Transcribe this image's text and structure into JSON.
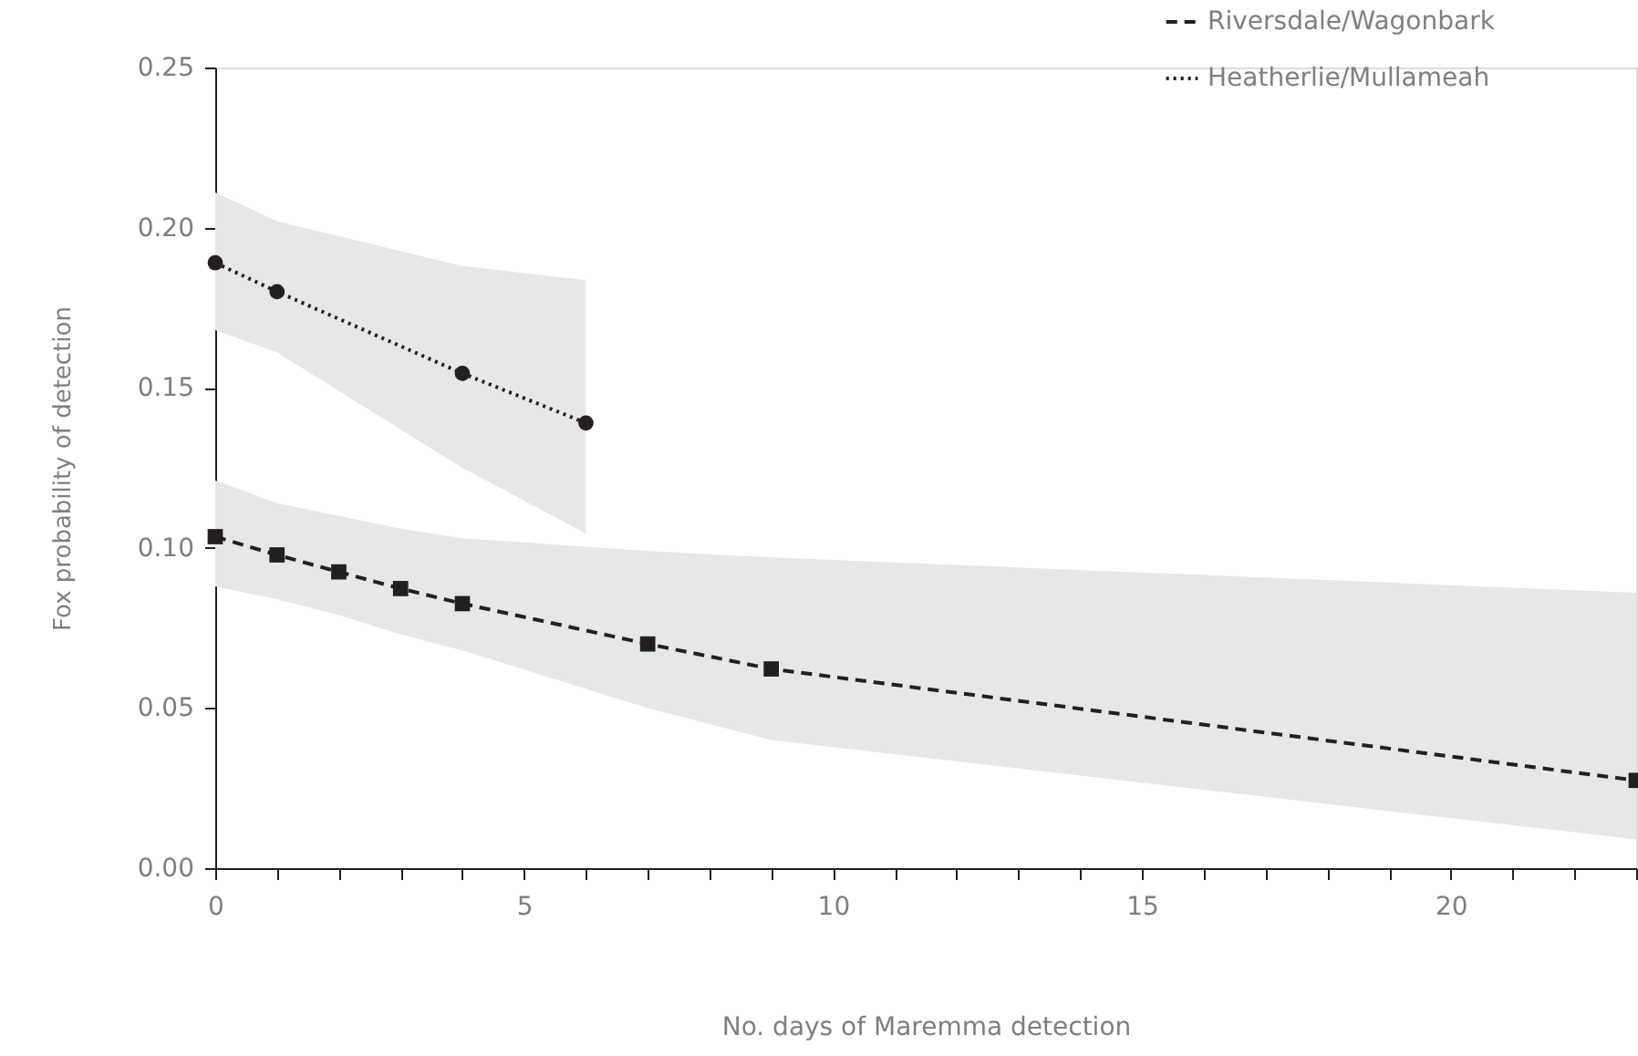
{
  "chart_data": {
    "type": "line",
    "xlabel": "No. days of Maremma detection",
    "ylabel": "Fox probability of detection",
    "xlim": [
      0,
      23
    ],
    "ylim": [
      0,
      0.25
    ],
    "xticks": [
      0,
      {
        "value": 1,
        "label": null
      },
      {
        "value": 2,
        "label": null
      },
      {
        "value": 3,
        "label": null
      },
      {
        "value": 4,
        "label": null
      },
      5,
      {
        "value": 6,
        "label": null
      },
      {
        "value": 7,
        "label": null
      },
      {
        "value": 8,
        "label": null
      },
      {
        "value": 9,
        "label": null
      },
      10,
      {
        "value": 11,
        "label": null
      },
      {
        "value": 12,
        "label": null
      },
      {
        "value": 13,
        "label": null
      },
      {
        "value": 14,
        "label": null
      },
      15,
      {
        "value": 16,
        "label": null
      },
      {
        "value": 17,
        "label": null
      },
      {
        "value": 18,
        "label": null
      },
      {
        "value": 19,
        "label": null
      },
      20,
      {
        "value": 21,
        "label": null
      },
      {
        "value": 22,
        "label": null
      },
      {
        "value": 23,
        "label": null
      }
    ],
    "yticks": [
      {
        "value": 0,
        "label": "0.00"
      },
      {
        "value": 0.05,
        "label": "0.05"
      },
      {
        "value": 0.1,
        "label": "0.10"
      },
      {
        "value": 0.15,
        "label": "0.15"
      },
      {
        "value": 0.2,
        "label": "0.20"
      },
      {
        "value": 0.25,
        "label": "0.25"
      }
    ],
    "legend": "top right",
    "series": [
      {
        "name": "Riversdale/Wagonbark",
        "color": "#231f20",
        "marker": "square",
        "line_style": "dashed",
        "x": [
          0,
          1,
          2,
          3,
          4,
          7,
          9,
          23
        ],
        "values": [
          0.1035,
          0.0978,
          0.0925,
          0.0873,
          0.0826,
          0.07,
          0.0622,
          0.0274
        ],
        "lower": [
          0.088,
          0.084,
          0.079,
          0.073,
          0.068,
          0.05,
          0.04,
          0.009
        ],
        "upper": [
          0.121,
          0.114,
          0.11,
          0.106,
          0.103,
          0.099,
          0.097,
          0.086
        ]
      },
      {
        "name": "Heatherlie/Mullameah",
        "color": "#231f20",
        "marker": "circle",
        "line_style": "dotted",
        "x": [
          0,
          1,
          4,
          6
        ],
        "values": [
          0.189,
          0.18,
          0.1545,
          0.139
        ],
        "lower": [
          0.168,
          0.161,
          0.125,
          0.1045
        ],
        "upper": [
          0.211,
          0.202,
          0.188,
          0.1836
        ]
      }
    ]
  }
}
